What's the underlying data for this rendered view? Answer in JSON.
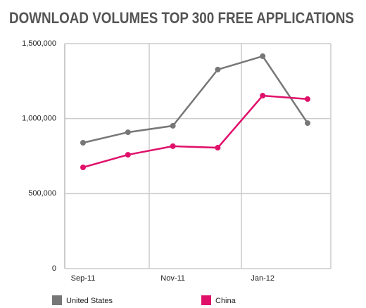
{
  "chart_data": {
    "type": "line",
    "title": "DOWNLOAD VOLUMES TOP 300 FREE APPLICATIONS",
    "categories": [
      "Sep-11",
      null,
      "Nov-11",
      null,
      "Jan-12",
      null
    ],
    "series": [
      {
        "name": "United States",
        "color": "#777777",
        "values": [
          839000,
          909000,
          952000,
          1327000,
          1416000,
          970000
        ]
      },
      {
        "name": "China",
        "color": "#e0106a",
        "values": [
          675000,
          759000,
          816000,
          806000,
          1153000,
          1130000
        ]
      }
    ],
    "ylim": [
      0,
      1500000
    ],
    "yticks": [
      0,
      {
        "value": 500000,
        "label": "500,000"
      },
      {
        "value": 1000000,
        "label": "1,000,000"
      },
      {
        "value": 1500000,
        "label": "1,500,000"
      }
    ],
    "grid": true
  }
}
